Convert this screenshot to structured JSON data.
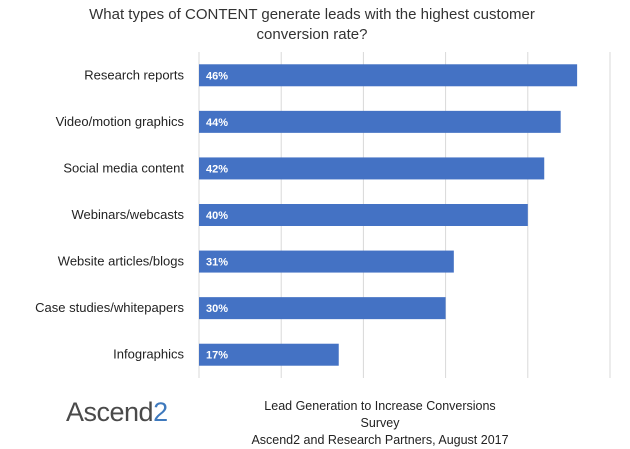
{
  "chart_data": {
    "type": "bar",
    "orientation": "horizontal",
    "title_lines": [
      "What types of CONTENT generate leads with the highest customer",
      "conversion rate?"
    ],
    "categories": [
      "Research reports",
      "Video/motion graphics",
      "Social media content",
      "Webinars/webcasts",
      "Website articles/blogs",
      "Case studies/whitepapers",
      "Infographics"
    ],
    "values": [
      46,
      44,
      42,
      40,
      31,
      30,
      17
    ],
    "value_labels": [
      "46%",
      "44%",
      "42%",
      "40%",
      "31%",
      "30%",
      "17%"
    ],
    "xlim": [
      0,
      50
    ],
    "grid": true,
    "bar_color": "#4472c4"
  },
  "branding": {
    "logo_main": "Ascend",
    "logo_accent": "2"
  },
  "source": {
    "line1": "Lead Generation to Increase Conversions Survey",
    "line2": "Ascend2 and Research Partners, August 2017"
  },
  "colors": {
    "bar": "#4472c4",
    "gridline": "#d9d9d9",
    "logo_accent": "#3e79bd"
  }
}
